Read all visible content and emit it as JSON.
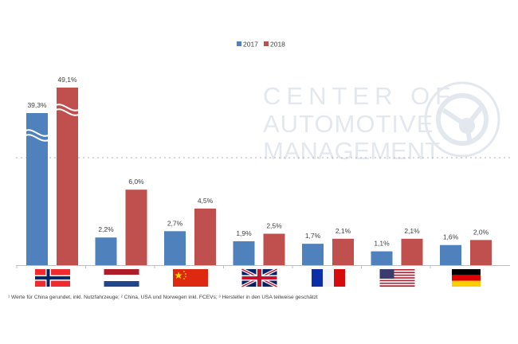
{
  "chart_data": {
    "type": "bar",
    "title": "",
    "xlabel": "",
    "ylabel": "",
    "categories": [
      "Norway",
      "Netherlands",
      "China",
      "United Kingdom",
      "France",
      "USA",
      "Germany"
    ],
    "category_flags": [
      "norway-flag",
      "netherlands-flag",
      "china-flag",
      "uk-flag",
      "france-flag",
      "usa-flag",
      "germany-flag"
    ],
    "series": [
      {
        "name": "2017",
        "color": "#4f81bd",
        "values": [
          39.3,
          2.2,
          2.7,
          1.9,
          1.7,
          1.1,
          1.6
        ],
        "labels": [
          "39,3%",
          "2,2%",
          "2,7%",
          "1,9%",
          "1,7%",
          "1,1%",
          "1,6%"
        ]
      },
      {
        "name": "2018",
        "color": "#c0504d",
        "values": [
          49.1,
          6.0,
          4.5,
          2.5,
          2.1,
          2.1,
          2.0
        ],
        "labels": [
          "49,1%",
          "6,0%",
          "4,5%",
          "2,5%",
          "2,1%",
          "2,1%",
          "2,0%"
        ]
      }
    ],
    "broken_axis_categories": [
      "Norway"
    ],
    "legend_position": "top-center",
    "grid": false,
    "ylim": [
      0,
      15
    ]
  },
  "watermark": {
    "lines": [
      "CENTER OF",
      "AUTOMOTIVE",
      "MANAGEMENT"
    ],
    "seal_text": "Prof. Dr. Stefan Bratzel • www.auto-institut.de"
  },
  "footnote": "¹ Werte für China gerundet, inkl. Nutzfahrzeuge; ² China, USA und Norwegen inkl. FCEVs; ³ Hersteller in den USA teilweise geschätzt"
}
